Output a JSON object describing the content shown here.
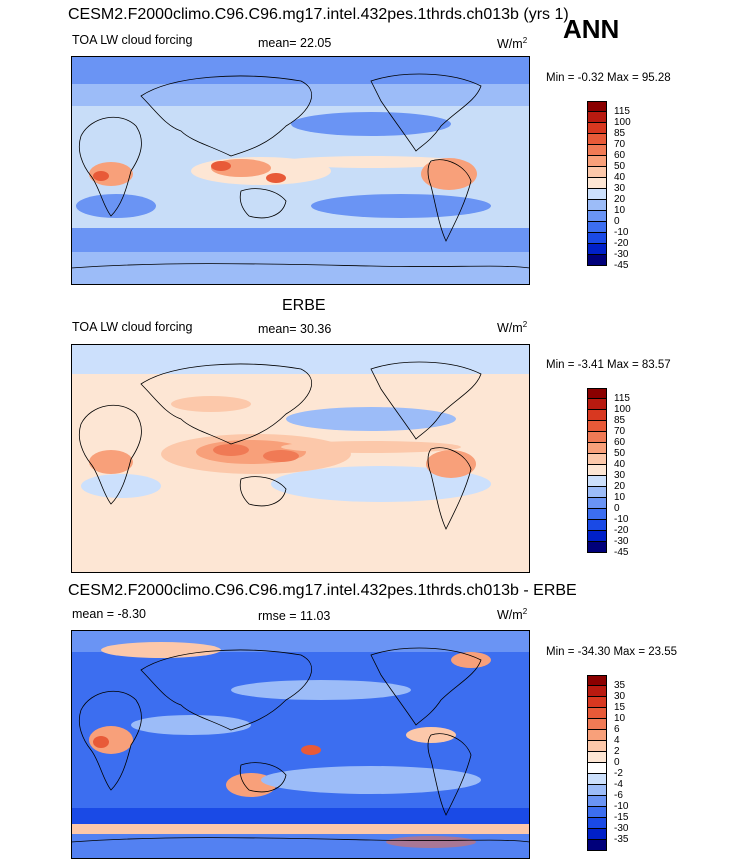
{
  "season": "ANN",
  "colors": {
    "lw": [
      "#00007a",
      "#0020c8",
      "#1a4ae6",
      "#3c6ef0",
      "#6a94f4",
      "#9cbcf8",
      "#cce0fc",
      "#fde6d4",
      "#fcc8aa",
      "#f8a07a",
      "#f07a55",
      "#e85a38",
      "#d83820",
      "#b81a10",
      "#8a0000"
    ],
    "diff": [
      "#00007a",
      "#0020c8",
      "#1a4ae6",
      "#3c6ef0",
      "#6a94f4",
      "#9cbcf8",
      "#cce0fc",
      "#ffffff",
      "#fde6d4",
      "#fcc8aa",
      "#f8a07a",
      "#f07a55",
      "#e85a38",
      "#d83820",
      "#b81a10",
      "#8a0000"
    ],
    "ocean_model": "#c8ddf8",
    "ocean_obs": "#fde6d4",
    "ocean_diff": "#3c6ef0"
  },
  "panels": [
    {
      "title": "CESM2.F2000climo.C96.C96.mg17.intel.432pes.1thrds.ch013b (yrs 1)",
      "left_label": "TOA LW cloud forcing",
      "center_label": "mean=  22.05",
      "units": "W/m",
      "units_sup": "2",
      "min_max": "Min =  -0.32 Max =  95.28",
      "levels": [
        "115",
        "100",
        "85",
        "70",
        "60",
        "50",
        "40",
        "30",
        "20",
        "10",
        "0",
        "-10",
        "-20",
        "-30",
        "-45"
      ]
    },
    {
      "title": "ERBE",
      "left_label": "TOA LW cloud forcing",
      "center_label": "mean=  30.36",
      "units": "W/m",
      "units_sup": "2",
      "min_max": "Min =  -3.41 Max =  83.57",
      "levels": [
        "115",
        "100",
        "85",
        "70",
        "60",
        "50",
        "40",
        "30",
        "20",
        "10",
        "0",
        "-10",
        "-20",
        "-30",
        "-45"
      ]
    },
    {
      "title": "CESM2.F2000climo.C96.C96.mg17.intel.432pes.1thrds.ch013b - ERBE",
      "left_label": "mean =  -8.30",
      "center_label": "rmse =  11.03",
      "units": "W/m",
      "units_sup": "2",
      "min_max": "Min = -34.30 Max =  23.55",
      "levels": [
        "35",
        "30",
        "15",
        "10",
        "6",
        "4",
        "2",
        "0",
        "-2",
        "-4",
        "-6",
        "-10",
        "-15",
        "-30",
        "-35"
      ]
    }
  ]
}
